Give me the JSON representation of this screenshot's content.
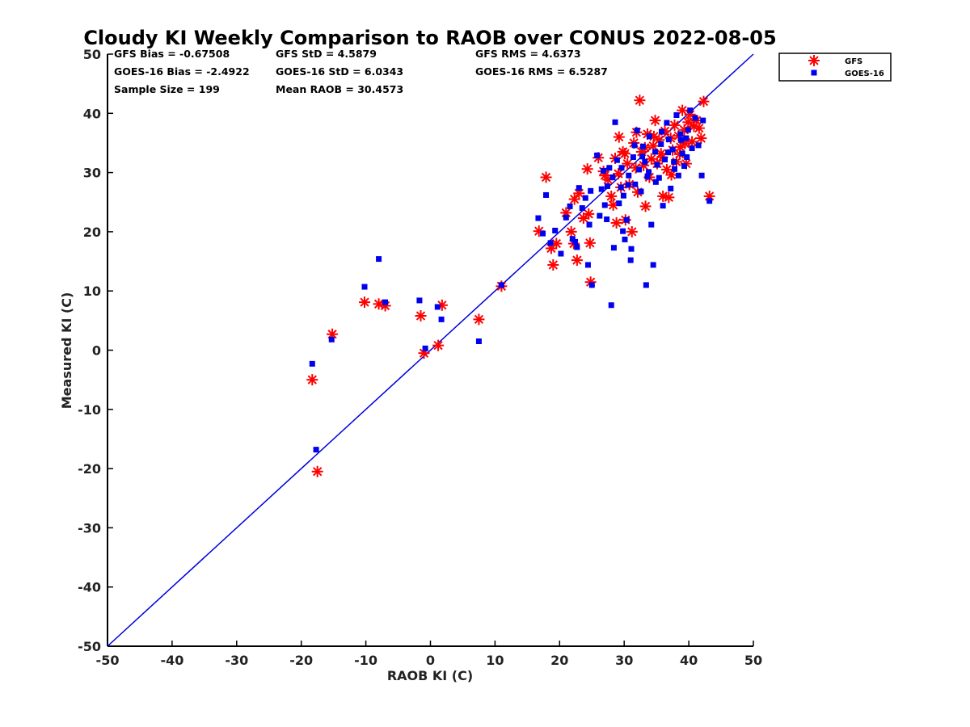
{
  "chart_data": {
    "type": "scatter",
    "title": "Cloudy KI Weekly Comparison to RAOB over CONUS 2022-08-05",
    "xlabel": "RAOB KI (C)",
    "ylabel": "Measured KI (C)",
    "xlim": [
      -50,
      50
    ],
    "ylim": [
      -50,
      50
    ],
    "xticks": [
      "-50",
      "-40",
      "-30",
      "-20",
      "-10",
      "0",
      "10",
      "20",
      "30",
      "40",
      "50"
    ],
    "yticks": [
      "50",
      "40",
      "30",
      "20",
      "10",
      "0",
      "-10",
      "-20",
      "-30",
      "-40",
      "-50"
    ],
    "grid": false,
    "legend_position": "outside-top-right",
    "reference_line": {
      "from": [
        -50,
        -50
      ],
      "to": [
        50,
        50
      ],
      "color": "#0000dd"
    },
    "stats": [
      [
        "GFS Bias = -0.67508",
        "GFS StD = 4.5879",
        "GFS RMS = 4.6373"
      ],
      [
        "GOES-16 Bias = -2.4922",
        "GOES-16 StD = 6.0343",
        "GOES-16 RMS = 6.5287"
      ],
      [
        "Sample Size = 199",
        "Mean RAOB = 30.4573",
        ""
      ]
    ],
    "series": [
      {
        "name": "GFS",
        "marker": "asterisk",
        "color": "#ff0000",
        "points": [
          [
            -17.5,
            -20.5
          ],
          [
            -18.3,
            -5
          ],
          [
            -15.2,
            2.7
          ],
          [
            -10.2,
            8.1
          ],
          [
            -8,
            7.8
          ],
          [
            -7,
            7.5
          ],
          [
            -1.5,
            5.8
          ],
          [
            1.8,
            7.6
          ],
          [
            -1,
            -0.5
          ],
          [
            1.2,
            0.8
          ],
          [
            7.5,
            5.2
          ],
          [
            11,
            10.8
          ],
          [
            16.8,
            20.1
          ],
          [
            17.9,
            29.2
          ],
          [
            18.7,
            17.2
          ],
          [
            19,
            14.4
          ],
          [
            19.5,
            18
          ],
          [
            21,
            23.2
          ],
          [
            21.8,
            20
          ],
          [
            22.2,
            18
          ],
          [
            22.3,
            25.5
          ],
          [
            22.7,
            15.2
          ],
          [
            23,
            26.5
          ],
          [
            23.7,
            22.3
          ],
          [
            24.3,
            30.6
          ],
          [
            24.7,
            18.1
          ],
          [
            24.8,
            11.5
          ],
          [
            24.5,
            23
          ],
          [
            26,
            32.5
          ],
          [
            27,
            29.5
          ],
          [
            27.5,
            28.8
          ],
          [
            28,
            26
          ],
          [
            28.3,
            24.5
          ],
          [
            28.8,
            21.5
          ],
          [
            29.2,
            36
          ],
          [
            29.5,
            27.5
          ],
          [
            29.8,
            33.5
          ],
          [
            30.2,
            22
          ],
          [
            30.5,
            31.5
          ],
          [
            30.8,
            28
          ],
          [
            31.2,
            20
          ],
          [
            31.5,
            35
          ],
          [
            31.8,
            30.8
          ],
          [
            32.1,
            26.7
          ],
          [
            32.4,
            42.2
          ],
          [
            32.7,
            33.5
          ],
          [
            33,
            31.2
          ],
          [
            33.3,
            24.3
          ],
          [
            33.6,
            36.5
          ],
          [
            33.9,
            29.2
          ],
          [
            34.2,
            32.3
          ],
          [
            34.5,
            34.5
          ],
          [
            34.8,
            38.8
          ],
          [
            35.1,
            31.5
          ],
          [
            35.4,
            35.5
          ],
          [
            35.7,
            33.2
          ],
          [
            36,
            26
          ],
          [
            36.3,
            37
          ],
          [
            36.6,
            30.5
          ],
          [
            36.9,
            25.8
          ],
          [
            37.2,
            35.8
          ],
          [
            37.5,
            33.8
          ],
          [
            37.8,
            38
          ],
          [
            38.1,
            31.8
          ],
          [
            38.4,
            36.2
          ],
          [
            38.7,
            34.3
          ],
          [
            39,
            40.5
          ],
          [
            39.3,
            37.2
          ],
          [
            39.6,
            31.5
          ],
          [
            39.9,
            38.5
          ],
          [
            40.2,
            39.8
          ],
          [
            40.5,
            35.2
          ],
          [
            40.8,
            37.8
          ],
          [
            41.2,
            38.8
          ],
          [
            41.6,
            37.5
          ],
          [
            41.9,
            35.8
          ],
          [
            42.3,
            42
          ],
          [
            43.2,
            26
          ],
          [
            29.1,
            29.8
          ],
          [
            30.1,
            33.2
          ],
          [
            31.9,
            36.8
          ],
          [
            33.2,
            34.2
          ],
          [
            34.6,
            36.1
          ],
          [
            35.9,
            32.6
          ],
          [
            37.3,
            29.6
          ],
          [
            38.6,
            33.1
          ],
          [
            39.4,
            34.9
          ],
          [
            26.8,
            30.2
          ],
          [
            28.6,
            32.4
          ]
        ]
      },
      {
        "name": "GOES-16",
        "marker": "square",
        "color": "#0000ee",
        "points": [
          [
            -17.7,
            -16.8
          ],
          [
            -18.3,
            -2.3
          ],
          [
            -15.3,
            1.8
          ],
          [
            -10.2,
            10.7
          ],
          [
            -8,
            15.4
          ],
          [
            -7,
            8.1
          ],
          [
            -1.7,
            8.4
          ],
          [
            1.1,
            7.3
          ],
          [
            1.7,
            5.2
          ],
          [
            -0.8,
            0.3
          ],
          [
            7.5,
            1.5
          ],
          [
            11,
            11
          ],
          [
            16.7,
            22.3
          ],
          [
            17.4,
            19.7
          ],
          [
            17.9,
            26.2
          ],
          [
            18.6,
            18.1
          ],
          [
            19.3,
            20.2
          ],
          [
            20.2,
            16.3
          ],
          [
            21,
            22.4
          ],
          [
            21.6,
            24.3
          ],
          [
            22,
            18.8
          ],
          [
            22.4,
            18.3
          ],
          [
            22.7,
            17.4
          ],
          [
            23,
            27.4
          ],
          [
            23.5,
            24
          ],
          [
            24,
            25.7
          ],
          [
            24.4,
            14.4
          ],
          [
            24.6,
            21.2
          ],
          [
            24.8,
            26.9
          ],
          [
            25,
            11
          ],
          [
            25.8,
            32.9
          ],
          [
            26.5,
            27.2
          ],
          [
            26.8,
            30.3
          ],
          [
            27,
            24.5
          ],
          [
            27.3,
            22.1
          ],
          [
            27.7,
            30.8
          ],
          [
            28,
            7.6
          ],
          [
            28.4,
            17.3
          ],
          [
            28.6,
            38.5
          ],
          [
            28.9,
            32.1
          ],
          [
            29.2,
            24.8
          ],
          [
            29.5,
            27.5
          ],
          [
            29.8,
            20.1
          ],
          [
            30.1,
            18.7
          ],
          [
            30.4,
            22
          ],
          [
            30.7,
            29.5
          ],
          [
            31,
            15.2
          ],
          [
            31.1,
            17.1
          ],
          [
            31.4,
            32.6
          ],
          [
            31.7,
            28
          ],
          [
            32,
            37.1
          ],
          [
            32.3,
            30.5
          ],
          [
            32.6,
            26.8
          ],
          [
            32.9,
            34.4
          ],
          [
            33.2,
            31.8
          ],
          [
            33.4,
            11
          ],
          [
            33.6,
            29.3
          ],
          [
            33.9,
            36.1
          ],
          [
            34.2,
            21.2
          ],
          [
            34.5,
            14.4
          ],
          [
            34.8,
            33.5
          ],
          [
            35.1,
            31.3
          ],
          [
            35.4,
            29.1
          ],
          [
            35.7,
            34.8
          ],
          [
            36,
            24.4
          ],
          [
            36.3,
            32.2
          ],
          [
            36.6,
            38.4
          ],
          [
            36.9,
            35.6
          ],
          [
            37.2,
            27.3
          ],
          [
            37.5,
            33.9
          ],
          [
            37.8,
            30.6
          ],
          [
            38.1,
            39.7
          ],
          [
            38.4,
            29.5
          ],
          [
            38.7,
            36.5
          ],
          [
            39,
            33.2
          ],
          [
            39.3,
            31.1
          ],
          [
            39.6,
            35.8
          ],
          [
            39.9,
            37.2
          ],
          [
            40.2,
            40.5
          ],
          [
            40.5,
            34.1
          ],
          [
            41,
            39.2
          ],
          [
            41.5,
            34.6
          ],
          [
            42,
            29.5
          ],
          [
            42.2,
            38.8
          ],
          [
            43.2,
            25.2
          ],
          [
            27.4,
            27.7
          ],
          [
            28.2,
            29.2
          ],
          [
            29.6,
            30.8
          ],
          [
            30.6,
            27.9
          ],
          [
            31.6,
            34.6
          ],
          [
            32.8,
            32.7
          ],
          [
            33.8,
            30.1
          ],
          [
            34.9,
            28.4
          ],
          [
            35.8,
            36.9
          ],
          [
            36.8,
            33.4
          ],
          [
            37.7,
            31.8
          ],
          [
            38.8,
            35.5
          ],
          [
            39.7,
            32.6
          ],
          [
            26.2,
            22.7
          ],
          [
            29.9,
            26.1
          ]
        ]
      }
    ]
  }
}
